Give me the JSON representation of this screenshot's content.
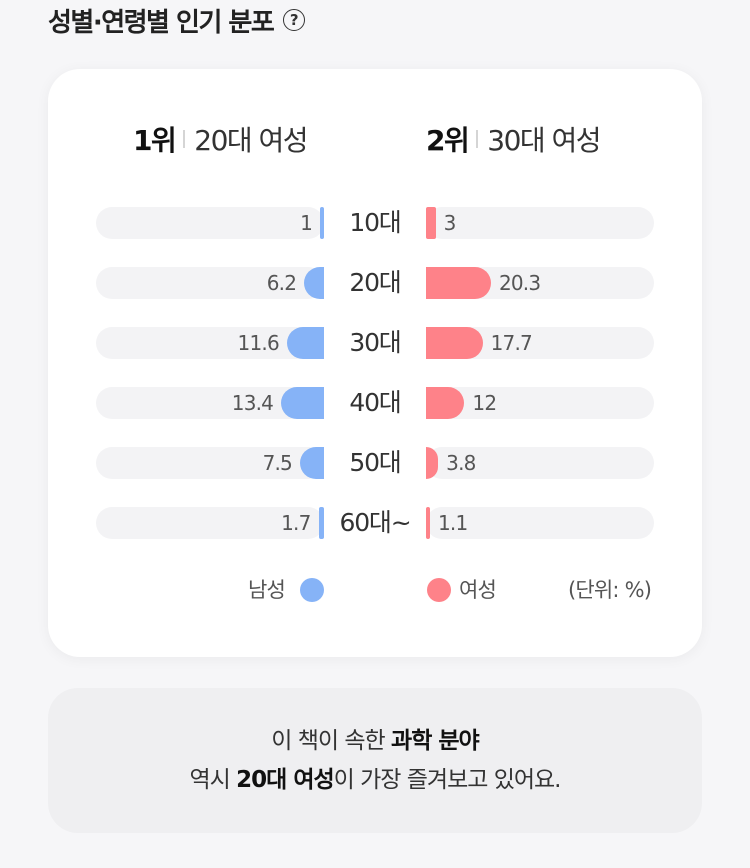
{
  "header": {
    "title": "성별·연령별 인기 분포",
    "help_icon": "?"
  },
  "ranks": [
    {
      "num": "1위",
      "label": "20대 여성"
    },
    {
      "num": "2위",
      "label": "30대 여성"
    }
  ],
  "colors": {
    "male": "#86b3f7",
    "female": "#fe8289",
    "track": "#f3f3f5"
  },
  "chart_data": {
    "type": "bar",
    "categories": [
      "10대",
      "20대",
      "30대",
      "40대",
      "50대",
      "60대~"
    ],
    "series": [
      {
        "name": "남성",
        "values": [
          1,
          6.2,
          11.6,
          13.4,
          7.5,
          1.7
        ]
      },
      {
        "name": "여성",
        "values": [
          3,
          20.3,
          17.7,
          12,
          3.8,
          1.1
        ]
      }
    ],
    "unit": "(단위: %)",
    "legend": "bottom"
  },
  "note": {
    "line1_pre": "이 책이 속한 ",
    "line1_bold": "과학 분야",
    "line2_pre": "역시 ",
    "line2_bold": "20대 여성",
    "line2_post": "이 가장 즐겨보고 있어요."
  }
}
